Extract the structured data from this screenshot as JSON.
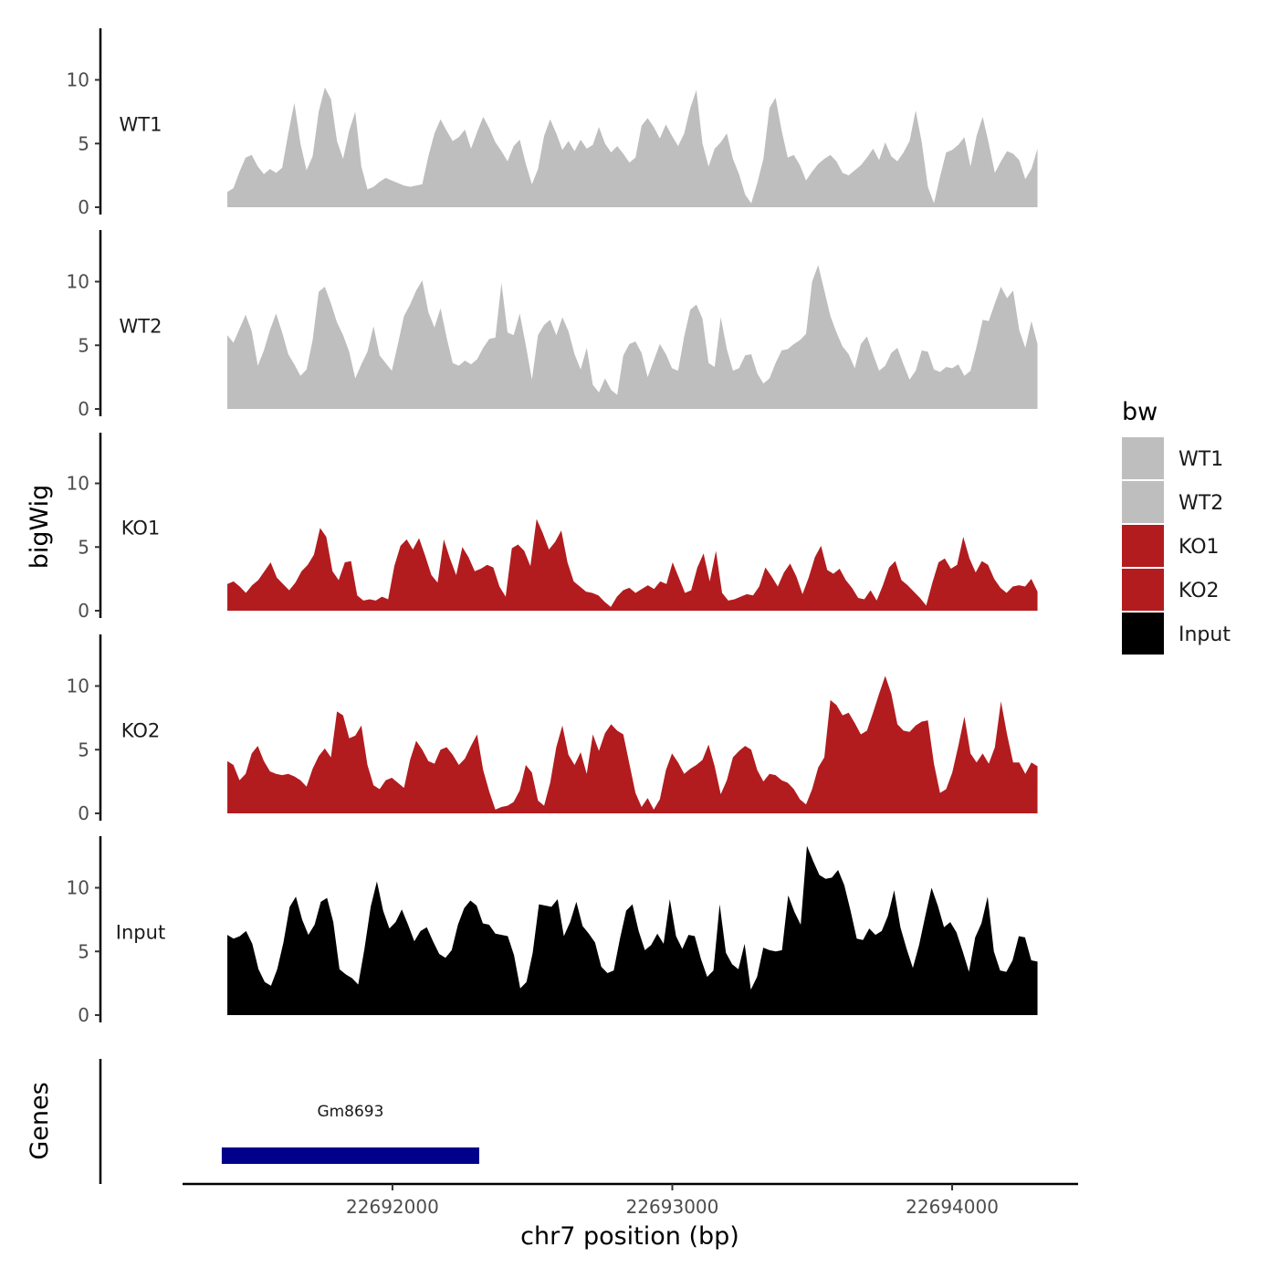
{
  "chart_data": {
    "type": "area",
    "title": "",
    "xlabel": "chr7 position (bp)",
    "ylabel": "bigWig",
    "genes_label": "Genes",
    "xlim": [
      22691250,
      22694450
    ],
    "x_ticks": [
      22692000,
      22693000,
      22694000
    ],
    "x_tick_labels": [
      "22692000",
      "22693000",
      "22694000"
    ],
    "ylim": [
      0,
      14
    ],
    "y_ticks": [
      0,
      5,
      10
    ],
    "y_tick_labels": [
      "0",
      "5",
      "10"
    ],
    "x_start": 22691410,
    "x_end": 22694305,
    "legend": {
      "title": "bw",
      "placement": "right",
      "entries": [
        {
          "label": "WT1",
          "color": "#bebebe"
        },
        {
          "label": "WT2",
          "color": "#bebebe"
        },
        {
          "label": "KO1",
          "color": "#b21c1f"
        },
        {
          "label": "KO2",
          "color": "#b21c1f"
        },
        {
          "label": "Input",
          "color": "#000000"
        }
      ]
    },
    "series": [
      {
        "name": "WT1",
        "color": "#bebebe",
        "values": [
          1.2,
          1.5,
          2.8,
          3.9,
          4.1,
          3.2,
          2.6,
          3.0,
          2.7,
          3.1,
          5.8,
          8.2,
          5.0,
          2.9,
          4.0,
          7.5,
          9.4,
          8.5,
          5.2,
          3.8,
          6.0,
          7.5,
          3.2,
          1.4,
          1.6,
          2.0,
          2.3,
          2.1,
          1.9,
          1.7,
          1.6,
          1.7,
          1.8,
          4.0,
          5.8,
          6.9,
          6.0,
          5.2,
          5.5,
          6.1,
          4.6,
          5.9,
          7.1,
          6.2,
          5.1,
          4.4,
          3.6,
          4.8,
          5.3,
          3.4,
          1.8,
          3.0,
          5.6,
          6.9,
          5.8,
          4.5,
          5.2,
          4.4,
          5.3,
          4.6,
          4.9,
          6.3,
          5.0,
          4.3,
          4.8,
          4.2,
          3.5,
          3.9,
          6.4,
          7.0,
          6.3,
          5.4,
          6.5,
          5.6,
          4.8,
          5.8,
          7.8,
          9.2,
          5.0,
          3.2,
          4.6,
          5.1,
          5.8,
          3.8,
          2.6,
          1.0,
          0.3,
          1.9,
          3.8,
          7.8,
          8.6,
          6.0,
          3.9,
          4.1,
          3.3,
          2.1,
          2.8,
          3.4,
          3.8,
          4.1,
          3.6,
          2.7,
          2.5,
          2.9,
          3.3,
          3.9,
          4.6,
          3.7,
          5.1,
          4.0,
          3.6,
          4.3,
          5.2,
          7.6,
          5.1,
          1.6,
          0.3,
          2.4,
          4.3,
          4.5,
          4.9,
          5.5,
          3.2,
          5.6,
          7.1,
          5.0,
          2.7,
          3.6,
          4.4,
          4.2,
          3.7,
          2.2,
          3.0,
          4.6
        ]
      },
      {
        "name": "WT2",
        "color": "#bebebe",
        "values": [
          5.8,
          5.2,
          6.3,
          7.4,
          6.1,
          3.4,
          4.6,
          6.2,
          7.5,
          6.0,
          4.3,
          3.5,
          2.6,
          3.1,
          5.4,
          9.2,
          9.6,
          8.3,
          6.8,
          5.8,
          4.5,
          2.4,
          3.5,
          4.5,
          6.5,
          4.2,
          3.6,
          3.0,
          5.1,
          7.3,
          8.2,
          9.3,
          10.1,
          7.6,
          6.4,
          7.9,
          5.6,
          3.6,
          3.4,
          3.8,
          3.5,
          3.9,
          4.8,
          5.5,
          5.6,
          9.9,
          6.0,
          5.8,
          7.5,
          5.0,
          2.3,
          5.8,
          6.6,
          7.0,
          5.8,
          7.2,
          6.1,
          4.3,
          3.1,
          4.8,
          1.9,
          1.3,
          2.4,
          1.5,
          1.1,
          4.2,
          5.1,
          5.3,
          4.4,
          2.5,
          3.8,
          5.1,
          4.3,
          3.2,
          3.0,
          5.7,
          7.8,
          8.2,
          7.1,
          3.6,
          3.3,
          7.2,
          4.7,
          3.0,
          3.2,
          4.2,
          4.3,
          2.8,
          2.0,
          2.4,
          3.6,
          4.6,
          4.7,
          5.1,
          5.4,
          5.9,
          10.0,
          11.3,
          9.3,
          7.3,
          6.0,
          4.9,
          4.3,
          3.2,
          5.1,
          5.7,
          4.3,
          3.0,
          3.4,
          4.4,
          4.8,
          3.5,
          2.3,
          3.0,
          4.6,
          4.5,
          3.1,
          2.9,
          3.3,
          3.2,
          3.5,
          2.6,
          3.0,
          4.9,
          7.0,
          6.9,
          8.3,
          9.6,
          8.7,
          9.3,
          6.2,
          4.8,
          6.9,
          5.1
        ]
      },
      {
        "name": "KO1",
        "color": "#b21c1f",
        "values": [
          2.1,
          2.3,
          1.9,
          1.4,
          2.0,
          2.4,
          3.1,
          3.8,
          2.6,
          2.1,
          1.6,
          2.2,
          3.1,
          3.6,
          4.4,
          6.5,
          5.8,
          3.1,
          2.4,
          3.8,
          3.9,
          1.2,
          0.8,
          0.9,
          0.8,
          1.1,
          0.9,
          3.5,
          5.1,
          5.6,
          4.8,
          5.7,
          4.3,
          2.8,
          2.2,
          5.6,
          4.1,
          2.8,
          5.0,
          4.2,
          3.1,
          3.3,
          3.6,
          3.4,
          1.9,
          1.1,
          4.9,
          5.2,
          4.7,
          3.5,
          7.2,
          6.1,
          4.8,
          5.4,
          6.3,
          3.8,
          2.3,
          1.9,
          1.5,
          1.4,
          1.2,
          0.7,
          0.3,
          1.1,
          1.6,
          1.8,
          1.4,
          1.7,
          2.0,
          1.7,
          2.3,
          2.1,
          3.8,
          2.6,
          1.4,
          1.6,
          3.4,
          4.5,
          2.3,
          4.7,
          1.4,
          0.8,
          0.9,
          1.1,
          1.3,
          1.2,
          1.9,
          3.4,
          2.7,
          1.9,
          3.0,
          3.7,
          2.7,
          1.3,
          2.6,
          4.2,
          5.1,
          3.2,
          2.9,
          3.3,
          2.4,
          1.8,
          1.0,
          0.9,
          1.6,
          0.8,
          2.0,
          3.4,
          3.9,
          2.4,
          2.0,
          1.5,
          1.0,
          0.4,
          2.2,
          3.8,
          4.1,
          3.3,
          3.6,
          5.8,
          4.1,
          3.0,
          3.9,
          3.6,
          2.5,
          1.8,
          1.4,
          1.9,
          2.0,
          1.9,
          2.5,
          1.5
        ]
      },
      {
        "name": "KO2",
        "color": "#b21c1f",
        "values": [
          4.1,
          3.8,
          2.6,
          3.1,
          4.7,
          5.3,
          4.1,
          3.3,
          3.1,
          3.0,
          3.1,
          2.9,
          2.6,
          2.1,
          3.5,
          4.5,
          5.1,
          4.4,
          8.0,
          7.7,
          5.9,
          6.1,
          6.9,
          3.8,
          2.2,
          1.9,
          2.6,
          2.8,
          2.4,
          2.0,
          4.2,
          5.7,
          5.0,
          4.1,
          3.9,
          5.0,
          5.2,
          4.6,
          3.8,
          4.3,
          5.3,
          6.2,
          3.4,
          1.7,
          0.3,
          0.5,
          0.6,
          0.9,
          1.8,
          3.8,
          3.2,
          1.0,
          0.6,
          2.4,
          5.2,
          6.9,
          4.6,
          3.8,
          4.8,
          3.1,
          6.2,
          4.9,
          6.3,
          7.0,
          6.5,
          6.2,
          3.9,
          1.6,
          0.5,
          1.2,
          0.3,
          1.1,
          3.4,
          4.7,
          4.0,
          3.1,
          3.5,
          3.8,
          4.2,
          5.4,
          3.7,
          1.5,
          2.6,
          4.4,
          4.9,
          5.3,
          5.0,
          3.4,
          2.5,
          3.1,
          3.0,
          2.6,
          2.4,
          1.9,
          1.1,
          0.7,
          1.9,
          3.6,
          4.4,
          8.9,
          8.5,
          7.7,
          7.9,
          7.1,
          6.2,
          6.5,
          7.9,
          9.4,
          10.8,
          9.4,
          7.0,
          6.5,
          6.4,
          6.9,
          7.2,
          7.3,
          3.9,
          1.6,
          1.9,
          3.2,
          5.3,
          7.6,
          4.7,
          4.0,
          4.7,
          3.9,
          5.2,
          8.8,
          6.2,
          4.0,
          4.0,
          3.1,
          4.0,
          3.7
        ]
      },
      {
        "name": "Input",
        "color": "#000000",
        "values": [
          6.3,
          6.0,
          6.2,
          6.6,
          5.6,
          3.6,
          2.6,
          2.3,
          3.6,
          5.7,
          8.5,
          9.3,
          7.5,
          6.3,
          7.1,
          8.9,
          9.2,
          7.3,
          3.6,
          3.2,
          2.9,
          2.4,
          5.2,
          8.5,
          10.5,
          8.2,
          6.8,
          7.3,
          8.3,
          7.1,
          5.8,
          6.6,
          6.9,
          5.8,
          4.8,
          4.5,
          5.1,
          7.1,
          8.4,
          9.0,
          8.6,
          7.2,
          7.1,
          6.4,
          6.3,
          6.2,
          4.7,
          2.1,
          2.6,
          4.9,
          8.7,
          8.6,
          8.5,
          9.1,
          6.2,
          7.3,
          8.9,
          7.0,
          6.4,
          5.7,
          3.8,
          3.3,
          3.5,
          6.0,
          8.2,
          8.7,
          6.6,
          5.1,
          5.5,
          6.4,
          5.6,
          9.1,
          6.2,
          5.2,
          6.3,
          6.2,
          4.4,
          3.0,
          3.5,
          8.7,
          4.9,
          4.0,
          3.6,
          5.6,
          2.0,
          3.0,
          5.3,
          5.1,
          5.0,
          5.1,
          9.4,
          8.1,
          7.1,
          13.3,
          12.1,
          11.0,
          10.7,
          10.8,
          11.4,
          10.2,
          8.2,
          6.0,
          5.9,
          6.8,
          6.3,
          6.6,
          7.8,
          9.8,
          6.9,
          5.2,
          3.7,
          5.5,
          7.8,
          10.0,
          8.6,
          6.9,
          7.3,
          6.5,
          5.0,
          3.4,
          6.1,
          7.2,
          9.3,
          5.0,
          3.5,
          3.4,
          4.3,
          6.2,
          6.1,
          4.3,
          4.2
        ]
      }
    ],
    "gene_track": {
      "genes": [
        {
          "name": "Gm8693",
          "start": 22691390,
          "end": 22692310
        }
      ]
    }
  }
}
